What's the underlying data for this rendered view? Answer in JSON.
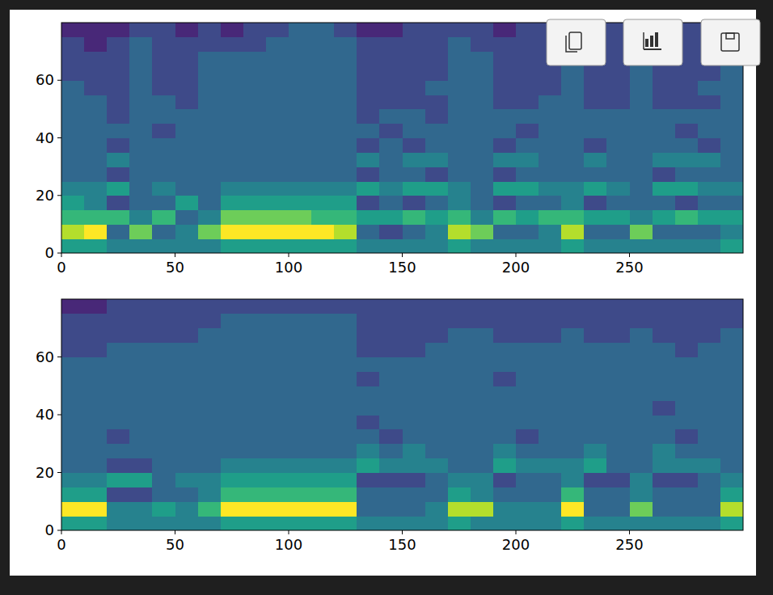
{
  "chart_data": [
    {
      "type": "heatmap",
      "color": "viridis",
      "xlim": [
        0,
        300
      ],
      "ylim": [
        0,
        80
      ],
      "xticks": [
        0,
        50,
        100,
        150,
        200,
        250
      ],
      "yticks": [
        0,
        20,
        40,
        60
      ],
      "zlim": [
        0,
        9
      ],
      "values": [
        [
          5,
          5,
          4,
          4,
          4,
          4,
          4,
          5,
          5,
          5,
          5,
          5,
          5,
          4,
          4,
          4,
          4,
          5,
          4,
          4,
          4,
          4,
          5,
          4,
          4,
          4,
          4,
          4,
          4,
          5
        ],
        [
          8,
          9,
          3,
          7,
          3,
          4,
          7,
          9,
          9,
          9,
          9,
          9,
          8,
          3,
          2,
          3,
          4,
          8,
          7,
          3,
          3,
          4,
          8,
          3,
          3,
          7,
          3,
          3,
          3,
          4
        ],
        [
          6,
          6,
          6,
          4,
          6,
          3,
          4,
          7,
          7,
          7,
          7,
          6,
          6,
          5,
          5,
          6,
          5,
          6,
          4,
          6,
          5,
          6,
          6,
          5,
          5,
          4,
          5,
          6,
          5,
          5
        ],
        [
          5,
          4,
          2,
          3,
          3,
          5,
          3,
          5,
          5,
          5,
          5,
          5,
          5,
          2,
          3,
          2,
          3,
          4,
          3,
          2,
          3,
          3,
          4,
          2,
          3,
          3,
          3,
          2,
          3,
          3
        ],
        [
          4,
          4,
          5,
          3,
          4,
          3,
          3,
          4,
          4,
          4,
          4,
          4,
          4,
          5,
          4,
          5,
          5,
          4,
          3,
          5,
          5,
          4,
          4,
          5,
          4,
          3,
          5,
          5,
          4,
          4
        ],
        [
          3,
          3,
          2,
          3,
          3,
          3,
          3,
          3,
          3,
          3,
          3,
          3,
          3,
          2,
          3,
          3,
          2,
          3,
          3,
          2,
          3,
          3,
          3,
          3,
          3,
          3,
          2,
          3,
          3,
          3
        ],
        [
          3,
          3,
          4,
          3,
          3,
          3,
          3,
          3,
          3,
          3,
          3,
          3,
          3,
          4,
          3,
          4,
          4,
          3,
          3,
          4,
          4,
          3,
          3,
          4,
          3,
          3,
          4,
          4,
          4,
          3
        ],
        [
          3,
          3,
          2,
          3,
          3,
          3,
          3,
          3,
          3,
          3,
          3,
          3,
          3,
          2,
          3,
          2,
          3,
          3,
          3,
          2,
          3,
          3,
          3,
          2,
          3,
          3,
          3,
          3,
          2,
          3
        ],
        [
          3,
          3,
          3,
          3,
          2,
          3,
          3,
          3,
          3,
          3,
          3,
          3,
          3,
          3,
          2,
          3,
          3,
          3,
          3,
          3,
          2,
          3,
          3,
          3,
          3,
          3,
          3,
          2,
          3,
          3
        ],
        [
          3,
          3,
          2,
          3,
          3,
          3,
          3,
          3,
          3,
          3,
          3,
          3,
          3,
          2,
          3,
          3,
          2,
          3,
          3,
          3,
          3,
          3,
          3,
          3,
          3,
          3,
          3,
          3,
          3,
          3
        ],
        [
          3,
          3,
          2,
          3,
          3,
          2,
          3,
          3,
          3,
          3,
          3,
          3,
          3,
          2,
          2,
          2,
          2,
          3,
          3,
          2,
          2,
          3,
          3,
          2,
          2,
          3,
          2,
          2,
          2,
          3
        ],
        [
          3,
          2,
          2,
          3,
          2,
          2,
          3,
          3,
          3,
          3,
          3,
          3,
          3,
          2,
          2,
          2,
          3,
          3,
          3,
          2,
          2,
          2,
          3,
          2,
          2,
          3,
          2,
          2,
          3,
          3
        ],
        [
          2,
          2,
          2,
          3,
          2,
          2,
          3,
          3,
          3,
          3,
          3,
          3,
          3,
          2,
          2,
          2,
          2,
          3,
          3,
          2,
          2,
          2,
          3,
          2,
          2,
          3,
          2,
          2,
          2,
          3
        ],
        [
          2,
          2,
          2,
          3,
          2,
          2,
          3,
          3,
          3,
          3,
          3,
          3,
          3,
          2,
          2,
          2,
          2,
          3,
          3,
          2,
          2,
          2,
          3,
          2,
          2,
          3,
          2,
          2,
          2,
          3
        ],
        [
          2,
          1,
          2,
          3,
          2,
          2,
          2,
          2,
          2,
          3,
          3,
          3,
          3,
          2,
          2,
          2,
          2,
          3,
          2,
          2,
          2,
          2,
          3,
          2,
          2,
          3,
          2,
          2,
          2,
          3
        ],
        [
          1,
          1,
          1,
          2,
          2,
          1,
          2,
          1,
          2,
          2,
          3,
          3,
          2,
          1,
          1,
          2,
          2,
          2,
          2,
          1,
          2,
          2,
          2,
          2,
          2,
          2,
          2,
          2,
          2,
          2
        ]
      ]
    },
    {
      "type": "heatmap",
      "color": "viridis",
      "xlim": [
        0,
        300
      ],
      "ylim": [
        0,
        80
      ],
      "xticks": [
        0,
        50,
        100,
        150,
        200,
        250
      ],
      "yticks": [
        0,
        20,
        40,
        60
      ],
      "zlim": [
        0,
        9
      ],
      "values": [
        [
          5,
          5,
          4,
          4,
          4,
          4,
          4,
          5,
          5,
          5,
          5,
          5,
          5,
          4,
          4,
          4,
          4,
          5,
          4,
          4,
          4,
          4,
          5,
          4,
          4,
          4,
          4,
          4,
          4,
          5
        ],
        [
          9,
          9,
          4,
          4,
          5,
          4,
          6,
          9,
          9,
          9,
          9,
          9,
          9,
          3,
          3,
          3,
          4,
          8,
          8,
          4,
          4,
          4,
          9,
          3,
          3,
          7,
          3,
          3,
          3,
          8
        ],
        [
          5,
          5,
          2,
          2,
          3,
          3,
          4,
          6,
          6,
          6,
          6,
          6,
          6,
          3,
          3,
          3,
          3,
          5,
          4,
          3,
          3,
          3,
          6,
          3,
          3,
          4,
          3,
          3,
          3,
          5
        ],
        [
          4,
          4,
          5,
          5,
          3,
          4,
          4,
          5,
          5,
          5,
          5,
          5,
          5,
          2,
          2,
          2,
          3,
          4,
          4,
          2,
          3,
          3,
          4,
          2,
          2,
          4,
          2,
          2,
          3,
          4
        ],
        [
          3,
          3,
          2,
          2,
          3,
          3,
          3,
          4,
          4,
          4,
          4,
          4,
          4,
          5,
          4,
          4,
          4,
          3,
          3,
          5,
          4,
          4,
          4,
          5,
          3,
          3,
          4,
          4,
          4,
          3
        ],
        [
          3,
          3,
          3,
          3,
          3,
          3,
          3,
          3,
          3,
          3,
          3,
          3,
          3,
          4,
          3,
          4,
          3,
          3,
          3,
          4,
          3,
          3,
          3,
          4,
          3,
          3,
          4,
          3,
          3,
          3
        ],
        [
          3,
          3,
          2,
          3,
          3,
          3,
          3,
          3,
          3,
          3,
          3,
          3,
          3,
          3,
          2,
          3,
          3,
          3,
          3,
          3,
          2,
          3,
          3,
          3,
          3,
          3,
          3,
          2,
          3,
          3
        ],
        [
          3,
          3,
          3,
          3,
          3,
          3,
          3,
          3,
          3,
          3,
          3,
          3,
          3,
          2,
          3,
          3,
          3,
          3,
          3,
          3,
          3,
          3,
          3,
          3,
          3,
          3,
          3,
          3,
          3,
          3
        ],
        [
          3,
          3,
          3,
          3,
          3,
          3,
          3,
          3,
          3,
          3,
          3,
          3,
          3,
          3,
          3,
          3,
          3,
          3,
          3,
          3,
          3,
          3,
          3,
          3,
          3,
          3,
          2,
          3,
          3,
          3
        ],
        [
          3,
          3,
          3,
          3,
          3,
          3,
          3,
          3,
          3,
          3,
          3,
          3,
          3,
          3,
          3,
          3,
          3,
          3,
          3,
          3,
          3,
          3,
          3,
          3,
          3,
          3,
          3,
          3,
          3,
          3
        ],
        [
          3,
          3,
          3,
          3,
          3,
          3,
          3,
          3,
          3,
          3,
          3,
          3,
          3,
          2,
          3,
          3,
          3,
          3,
          3,
          2,
          3,
          3,
          3,
          3,
          3,
          3,
          3,
          3,
          3,
          3
        ],
        [
          3,
          3,
          3,
          3,
          3,
          3,
          3,
          3,
          3,
          3,
          3,
          3,
          3,
          3,
          3,
          3,
          3,
          3,
          3,
          3,
          3,
          3,
          3,
          3,
          3,
          3,
          3,
          3,
          3,
          3
        ],
        [
          2,
          2,
          3,
          3,
          3,
          3,
          3,
          3,
          3,
          3,
          3,
          3,
          3,
          2,
          2,
          2,
          3,
          3,
          3,
          3,
          3,
          3,
          3,
          3,
          3,
          3,
          3,
          2,
          3,
          3
        ],
        [
          2,
          2,
          2,
          2,
          2,
          2,
          3,
          3,
          3,
          3,
          3,
          3,
          3,
          2,
          2,
          2,
          2,
          3,
          3,
          2,
          2,
          2,
          3,
          2,
          2,
          3,
          2,
          2,
          2,
          3
        ],
        [
          2,
          2,
          2,
          2,
          2,
          2,
          2,
          3,
          3,
          3,
          3,
          3,
          3,
          2,
          2,
          2,
          2,
          2,
          2,
          2,
          2,
          2,
          2,
          2,
          2,
          2,
          2,
          2,
          2,
          2
        ],
        [
          1,
          1,
          2,
          2,
          2,
          2,
          2,
          2,
          2,
          2,
          2,
          2,
          2,
          2,
          2,
          2,
          2,
          2,
          2,
          2,
          2,
          2,
          2,
          2,
          2,
          2,
          2,
          2,
          2,
          2
        ]
      ]
    }
  ]
}
